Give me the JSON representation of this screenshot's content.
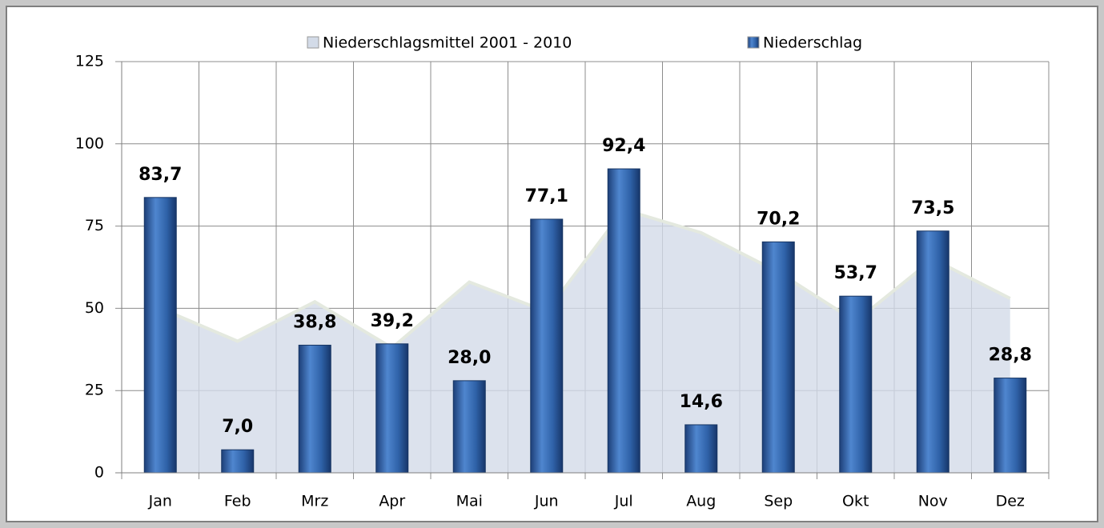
{
  "chart_data": {
    "type": "bar_area",
    "categories": [
      "Jan",
      "Feb",
      "Mrz",
      "Apr",
      "Mai",
      "Jun",
      "Jul",
      "Aug",
      "Sep",
      "Okt",
      "Nov",
      "Dez"
    ],
    "series": [
      {
        "name": "Niederschlagsmittel 2001 - 2010",
        "type": "area",
        "color": "#d3dbe8",
        "values": [
          50,
          40,
          52,
          38,
          58,
          49,
          80,
          73,
          61,
          46,
          65,
          53
        ]
      },
      {
        "name": "Niederschlag",
        "type": "bar",
        "color": "#2f62a8",
        "values": [
          83.7,
          7.0,
          38.8,
          39.2,
          28.0,
          77.1,
          92.4,
          14.6,
          70.2,
          53.7,
          73.5,
          28.8
        ],
        "value_labels": [
          "83,7",
          "7,0",
          "38,8",
          "39,2",
          "28,0",
          "77,1",
          "92,4",
          "14,6",
          "70,2",
          "53,7",
          "73,5",
          "28,8"
        ]
      }
    ],
    "ylim": [
      0,
      125
    ],
    "yticks": [
      0,
      25,
      50,
      75,
      100,
      125
    ],
    "grid": true,
    "legend": "top"
  }
}
